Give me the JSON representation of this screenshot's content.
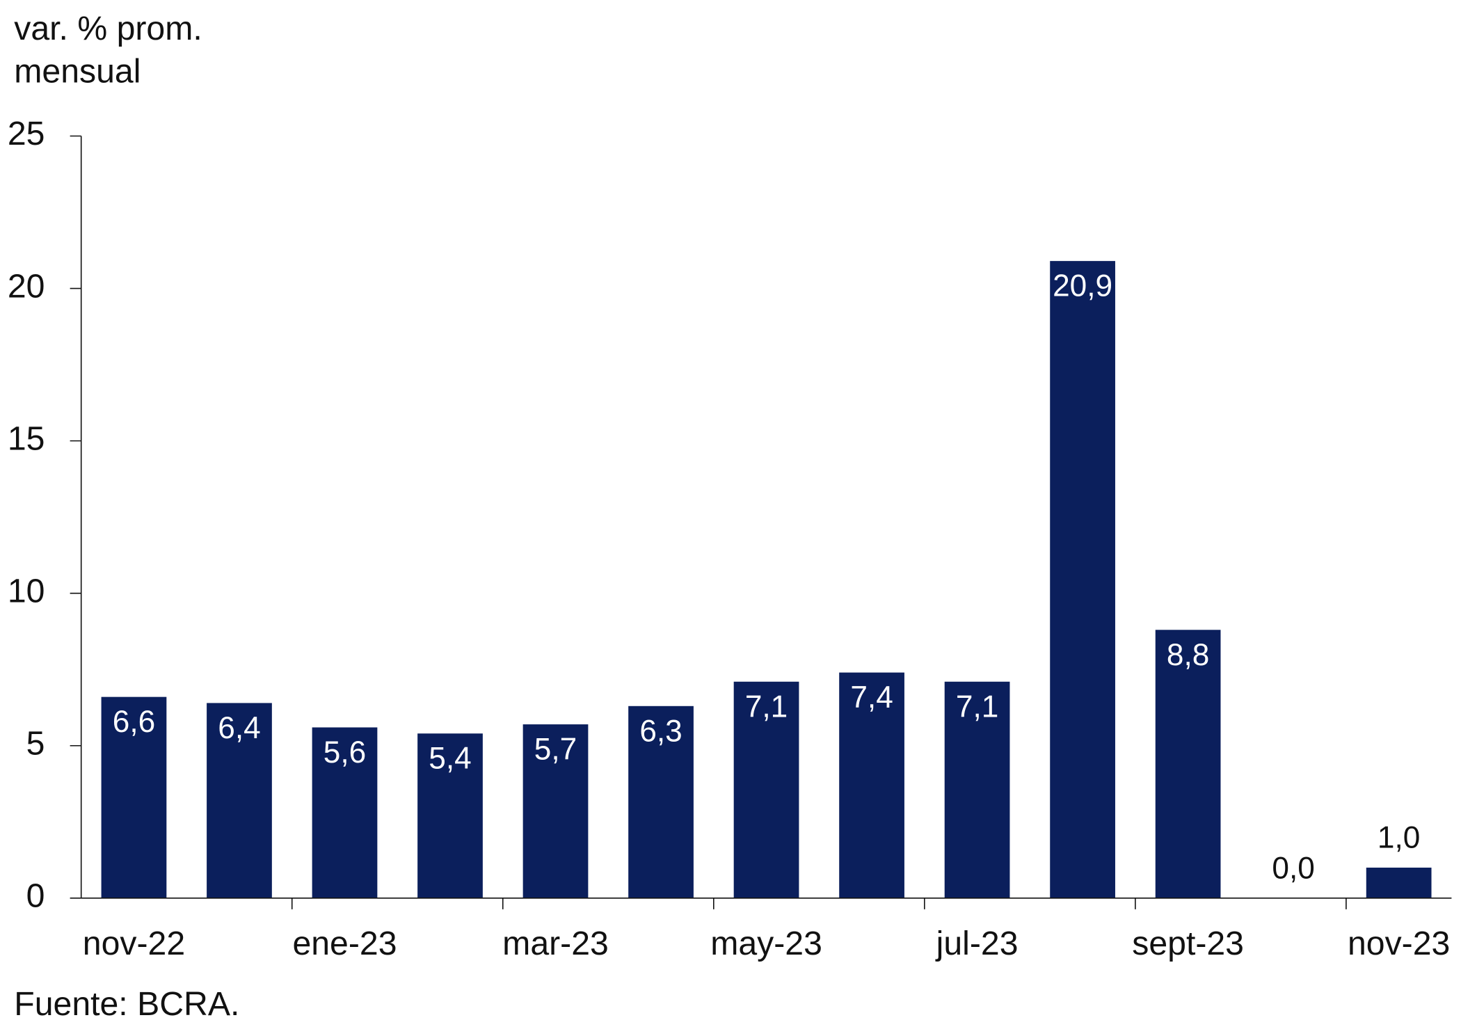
{
  "chart_data": {
    "type": "bar",
    "y_label": [
      "var. % prom.",
      "mensual"
    ],
    "categories": [
      "nov-22",
      null,
      "ene-23",
      null,
      "mar-23",
      null,
      "may-23",
      null,
      "jul-23",
      null,
      "sept-23",
      null,
      "nov-23"
    ],
    "values": [
      6.6,
      6.4,
      5.6,
      5.4,
      5.7,
      6.3,
      7.1,
      7.4,
      7.1,
      20.9,
      8.8,
      0.0,
      1.0
    ],
    "value_labels": [
      "6,6",
      "6,4",
      "5,6",
      "5,4",
      "5,7",
      "6,3",
      "7,1",
      "7,4",
      "7,1",
      "20,9",
      "8,8",
      "0,0",
      "1,0"
    ],
    "color": "#0b1f5c",
    "ylim": [
      0,
      25
    ],
    "yticks": [
      0,
      5,
      10,
      15,
      20,
      25
    ],
    "source": "Fuente: BCRA."
  }
}
